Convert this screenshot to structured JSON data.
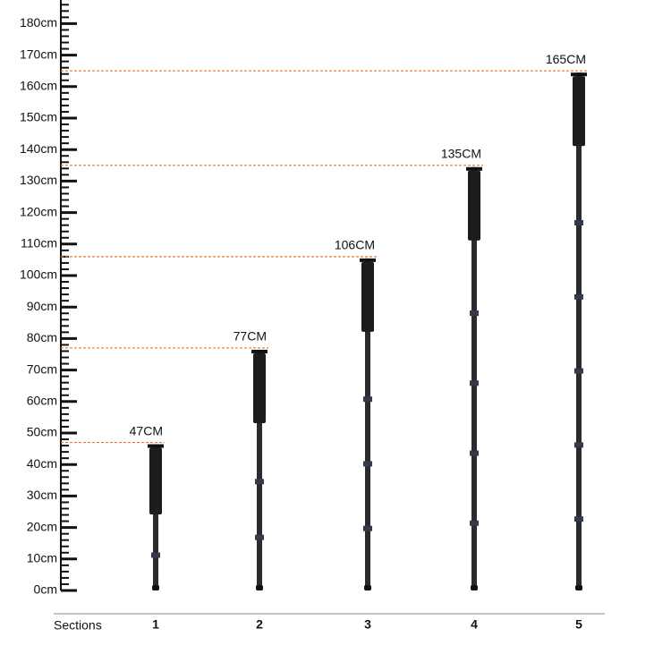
{
  "chart_data": {
    "type": "monopod",
    "x_label": "Sections",
    "categories": [
      "1",
      "2",
      "3",
      "4",
      "5"
    ],
    "values": [
      47,
      77,
      106,
      135,
      165
    ],
    "value_labels": [
      "47CM",
      "77CM",
      "106CM",
      "135CM",
      "165CM"
    ],
    "color": "#2b2b2e",
    "label_color": "#e8782a",
    "ylim": [
      0,
      187.5
    ],
    "yticks": [
      {
        "value": 0,
        "label": "0cm"
      },
      {
        "value": 10,
        "label": "10cm"
      },
      {
        "value": 20,
        "label": "20cm"
      },
      {
        "value": 30,
        "label": "30cm"
      },
      {
        "value": 40,
        "label": "40cm"
      },
      {
        "value": 50,
        "label": "50cm"
      },
      {
        "value": 60,
        "label": "60cm"
      },
      {
        "value": 70,
        "label": "70cm"
      },
      {
        "value": 80,
        "label": "80cm"
      },
      {
        "value": 90,
        "label": "90cm"
      },
      {
        "value": 100,
        "label": "100cm"
      },
      {
        "value": 110,
        "label": "110cm"
      },
      {
        "value": 120,
        "label": "120cm"
      },
      {
        "value": 130,
        "label": "130cm"
      },
      {
        "value": 140,
        "label": "140cm"
      },
      {
        "value": 150,
        "label": "150cm"
      },
      {
        "value": 160,
        "label": "160cm"
      },
      {
        "value": 170,
        "label": "170cm"
      },
      {
        "value": 180,
        "label": "180cm"
      }
    ]
  }
}
